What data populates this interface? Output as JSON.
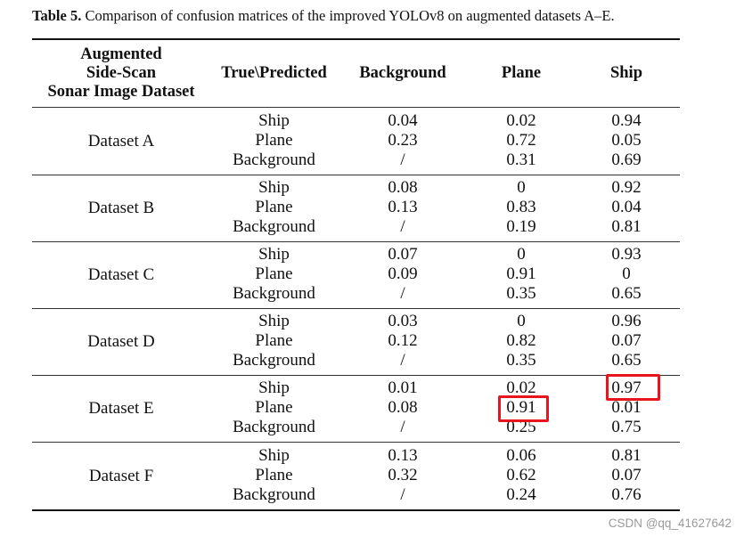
{
  "caption": {
    "label": "Table 5.",
    "text": " Comparison of confusion matrices of the improved YOLOv8 on augmented datasets A–E."
  },
  "headers": {
    "dataset_lines": [
      "Augmented",
      "Side-Scan",
      "Sonar Image Dataset"
    ],
    "true_predicted": "True\\Predicted",
    "background": "Background",
    "plane": "Plane",
    "ship": "Ship"
  },
  "groups": [
    {
      "name": "Dataset A",
      "rows": [
        {
          "true": "Ship",
          "background": "0.04",
          "plane": "0.02",
          "ship": "0.94"
        },
        {
          "true": "Plane",
          "background": "0.23",
          "plane": "0.72",
          "ship": "0.05"
        },
        {
          "true": "Background",
          "background": "/",
          "plane": "0.31",
          "ship": "0.69"
        }
      ]
    },
    {
      "name": "Dataset B",
      "rows": [
        {
          "true": "Ship",
          "background": "0.08",
          "plane": "0",
          "ship": "0.92"
        },
        {
          "true": "Plane",
          "background": "0.13",
          "plane": "0.83",
          "ship": "0.04"
        },
        {
          "true": "Background",
          "background": "/",
          "plane": "0.19",
          "ship": "0.81"
        }
      ]
    },
    {
      "name": "Dataset C",
      "rows": [
        {
          "true": "Ship",
          "background": "0.07",
          "plane": "0",
          "ship": "0.93"
        },
        {
          "true": "Plane",
          "background": "0.09",
          "plane": "0.91",
          "ship": "0"
        },
        {
          "true": "Background",
          "background": "/",
          "plane": "0.35",
          "ship": "0.65"
        }
      ]
    },
    {
      "name": "Dataset D",
      "rows": [
        {
          "true": "Ship",
          "background": "0.03",
          "plane": "0",
          "ship": "0.96"
        },
        {
          "true": "Plane",
          "background": "0.12",
          "plane": "0.82",
          "ship": "0.07"
        },
        {
          "true": "Background",
          "background": "/",
          "plane": "0.35",
          "ship": "0.65"
        }
      ]
    },
    {
      "name": "Dataset E",
      "rows": [
        {
          "true": "Ship",
          "background": "0.01",
          "plane": "0.02",
          "ship": "0.97"
        },
        {
          "true": "Plane",
          "background": "0.08",
          "plane": "0.91",
          "ship": "0.01"
        },
        {
          "true": "Background",
          "background": "/",
          "plane": "0.25",
          "ship": "0.75"
        }
      ]
    },
    {
      "name": "Dataset F",
      "rows": [
        {
          "true": "Ship",
          "background": "0.13",
          "plane": "0.06",
          "ship": "0.81"
        },
        {
          "true": "Plane",
          "background": "0.32",
          "plane": "0.62",
          "ship": "0.07"
        },
        {
          "true": "Background",
          "background": "/",
          "plane": "0.24",
          "ship": "0.76"
        }
      ]
    }
  ],
  "highlight_color": "#e8141e",
  "watermark": "CSDN @qq_41627642"
}
